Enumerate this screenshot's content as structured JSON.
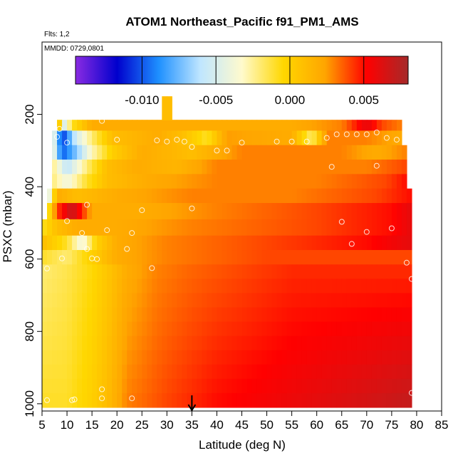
{
  "chart_data": {
    "type": "heatmap",
    "title": "ATOM1 Northeast_Pacific f91_PM1_AMS",
    "annotations": [
      "Flts: 1,2",
      "MMDD: 0729,0801"
    ],
    "xlabel": "Latitude (deg N)",
    "ylabel": "PSXC (mbar)",
    "xlim": [
      5,
      85
    ],
    "ylim": [
      1020,
      0
    ],
    "x_ticks": [
      "5",
      "10",
      "15",
      "20",
      "25",
      "30",
      "35",
      "40",
      "45",
      "50",
      "55",
      "60",
      "65",
      "70",
      "75",
      "80",
      "85"
    ],
    "y_ticks": [
      "200",
      "400",
      "600",
      "800",
      "1000"
    ],
    "colorbar": {
      "range": [
        -0.0145,
        0.008
      ],
      "tick_values": [
        -0.01,
        -0.005,
        0.0,
        0.005
      ],
      "tick_labels": [
        "-0.010",
        "-0.005",
        "0.000",
        "0.005"
      ],
      "colors": [
        "#8a2be2",
        "#0000cd",
        "#1e90ff",
        "#bfe6ff",
        "#fffacd",
        "#ffd700",
        "#ffa500",
        "#ff0000",
        "#a52a2a"
      ]
    },
    "marker_latitude": 35,
    "layers": [
      {
        "p_top": 215,
        "p_bot": 245,
        "lat_min": 8,
        "lat_max": 77,
        "points": [
          [
            8,
            0.006
          ],
          [
            9,
            -0.006
          ],
          [
            11,
            -0.001
          ],
          [
            15,
            0.002
          ],
          [
            25,
            0.002
          ],
          [
            40,
            0.002
          ],
          [
            55,
            0.002
          ],
          [
            65,
            0.003
          ],
          [
            70,
            0.006
          ],
          [
            73,
            0.004
          ],
          [
            77,
            0.003
          ]
        ]
      },
      {
        "p_top": 245,
        "p_bot": 285,
        "lat_min": 7,
        "lat_max": 77,
        "points": [
          [
            7,
            -0.003
          ],
          [
            9,
            -0.011
          ],
          [
            12,
            -0.005
          ],
          [
            15,
            -0.002
          ],
          [
            19,
            0.001
          ],
          [
            28,
            0.002
          ],
          [
            33,
            0.001
          ],
          [
            38,
            -0.001
          ],
          [
            42,
            0.0025
          ],
          [
            55,
            0.002
          ],
          [
            59,
            -0.002
          ],
          [
            62,
            0.003
          ],
          [
            70,
            0.003
          ],
          [
            77,
            0.002
          ]
        ]
      },
      {
        "p_top": 285,
        "p_bot": 325,
        "lat_min": 7,
        "lat_max": 78,
        "points": [
          [
            7,
            -0.003
          ],
          [
            9,
            -0.01
          ],
          [
            12,
            -0.007
          ],
          [
            15,
            -0.003
          ],
          [
            19,
            0.0
          ],
          [
            25,
            0.002
          ],
          [
            35,
            0.001
          ],
          [
            45,
            0.003
          ],
          [
            55,
            0.003
          ],
          [
            65,
            0.003
          ],
          [
            72,
            0.002
          ],
          [
            78,
            0.003
          ]
        ]
      },
      {
        "p_top": 325,
        "p_bot": 365,
        "lat_min": 7,
        "lat_max": 78,
        "points": [
          [
            7,
            -0.002
          ],
          [
            10,
            -0.006
          ],
          [
            14,
            -0.002
          ],
          [
            18,
            0.001
          ],
          [
            24,
            0.002
          ],
          [
            32,
            0.0015
          ],
          [
            40,
            0.003
          ],
          [
            60,
            0.003
          ],
          [
            70,
            0.003
          ],
          [
            78,
            0.004
          ]
        ]
      },
      {
        "p_top": 365,
        "p_bot": 405,
        "lat_min": 7,
        "lat_max": 78,
        "points": [
          [
            7,
            -0.002
          ],
          [
            10,
            -0.004
          ],
          [
            14,
            -0.001
          ],
          [
            18,
            0.001
          ],
          [
            26,
            0.002
          ],
          [
            40,
            0.003
          ],
          [
            60,
            0.003
          ],
          [
            74,
            0.004
          ],
          [
            78,
            0.005
          ]
        ]
      },
      {
        "p_top": 405,
        "p_bot": 445,
        "lat_min": 6,
        "lat_max": 79,
        "points": [
          [
            6,
            -0.006
          ],
          [
            8,
            0.002
          ],
          [
            12,
            0.001
          ],
          [
            20,
            0.002
          ],
          [
            35,
            0.003
          ],
          [
            55,
            0.003
          ],
          [
            72,
            0.004
          ],
          [
            79,
            0.005
          ]
        ]
      },
      {
        "p_top": 445,
        "p_bot": 490,
        "lat_min": 6,
        "lat_max": 79,
        "points": [
          [
            6,
            -0.002
          ],
          [
            8,
            0.004
          ],
          [
            11,
            0.007
          ],
          [
            15,
            0.002
          ],
          [
            25,
            0.002
          ],
          [
            40,
            0.003
          ],
          [
            60,
            0.004
          ],
          [
            75,
            0.005
          ],
          [
            79,
            0.006
          ]
        ]
      },
      {
        "p_top": 490,
        "p_bot": 535,
        "lat_min": 5,
        "lat_max": 79,
        "points": [
          [
            5,
            -0.001
          ],
          [
            8,
            0.001
          ],
          [
            12,
            0.002
          ],
          [
            20,
            0.002
          ],
          [
            35,
            0.003
          ],
          [
            60,
            0.004
          ],
          [
            75,
            0.005
          ],
          [
            79,
            0.006
          ]
        ]
      },
      {
        "p_top": 535,
        "p_bot": 575,
        "lat_min": 5,
        "lat_max": 79,
        "points": [
          [
            5,
            0.001
          ],
          [
            10,
            -0.001
          ],
          [
            13,
            -0.004
          ],
          [
            16,
            0.0
          ],
          [
            20,
            0.002
          ],
          [
            30,
            0.003
          ],
          [
            50,
            0.004
          ],
          [
            70,
            0.005
          ],
          [
            79,
            0.006
          ]
        ]
      },
      {
        "p_top": 575,
        "p_bot": 615,
        "lat_min": 5,
        "lat_max": 79,
        "points": [
          [
            5,
            -0.001
          ],
          [
            10,
            -0.002
          ],
          [
            15,
            0.0
          ],
          [
            20,
            0.002
          ],
          [
            30,
            0.003
          ],
          [
            50,
            0.004
          ],
          [
            70,
            0.004
          ],
          [
            79,
            0.004
          ]
        ]
      },
      {
        "p_top": 615,
        "p_bot": 1010,
        "lat_min": 5,
        "lat_max": 79,
        "points": [
          [
            5,
            -0.002
          ],
          [
            10,
            -0.0015
          ],
          [
            15,
            -0.0005
          ],
          [
            18,
            0.0005
          ],
          [
            22,
            0.002
          ],
          [
            28,
            0.003
          ],
          [
            35,
            0.0035
          ],
          [
            45,
            0.004
          ],
          [
            55,
            0.0045
          ],
          [
            65,
            0.0045
          ],
          [
            75,
            0.0045
          ],
          [
            79,
            0.0045
          ]
        ],
        "bottom_points": [
          [
            5,
            -0.001
          ],
          [
            10,
            -0.001
          ],
          [
            15,
            0.0
          ],
          [
            18,
            0.001
          ],
          [
            22,
            0.003
          ],
          [
            30,
            0.004
          ],
          [
            40,
            0.005
          ],
          [
            50,
            0.0055
          ],
          [
            60,
            0.006
          ],
          [
            70,
            0.0065
          ],
          [
            79,
            0.007
          ]
        ]
      },
      {
        "p_top": 150,
        "p_bot": 215,
        "lat_min": 29,
        "lat_max": 31,
        "points": [
          [
            29,
            0.001
          ],
          [
            31,
            0.001
          ]
        ]
      }
    ],
    "observation_points": [
      [
        8.5,
        240
      ],
      [
        17,
        218
      ],
      [
        8,
        262
      ],
      [
        10,
        278
      ],
      [
        20,
        270
      ],
      [
        28,
        272
      ],
      [
        30,
        275
      ],
      [
        32,
        270
      ],
      [
        33.5,
        275
      ],
      [
        35,
        290
      ],
      [
        40,
        300
      ],
      [
        42,
        300
      ],
      [
        45,
        278
      ],
      [
        52,
        275
      ],
      [
        55,
        275
      ],
      [
        58,
        275
      ],
      [
        62,
        265
      ],
      [
        64,
        255
      ],
      [
        66,
        255
      ],
      [
        68,
        255
      ],
      [
        70,
        255
      ],
      [
        72,
        250
      ],
      [
        74,
        265
      ],
      [
        76,
        270
      ],
      [
        63,
        345
      ],
      [
        72,
        342
      ],
      [
        14,
        450
      ],
      [
        25,
        465
      ],
      [
        35,
        460
      ],
      [
        10,
        495
      ],
      [
        13,
        528
      ],
      [
        18,
        520
      ],
      [
        23,
        528
      ],
      [
        65,
        497
      ],
      [
        70,
        525
      ],
      [
        75,
        515
      ],
      [
        67,
        558
      ],
      [
        14,
        572
      ],
      [
        22,
        572
      ],
      [
        9,
        598
      ],
      [
        15,
        598
      ],
      [
        16,
        600
      ],
      [
        27,
        625
      ],
      [
        6,
        626
      ],
      [
        78,
        610
      ],
      [
        79,
        655
      ],
      [
        11,
        990
      ],
      [
        11.5,
        988
      ],
      [
        17,
        960
      ],
      [
        17,
        985
      ],
      [
        23,
        985
      ],
      [
        6,
        990
      ],
      [
        79,
        970
      ]
    ]
  }
}
